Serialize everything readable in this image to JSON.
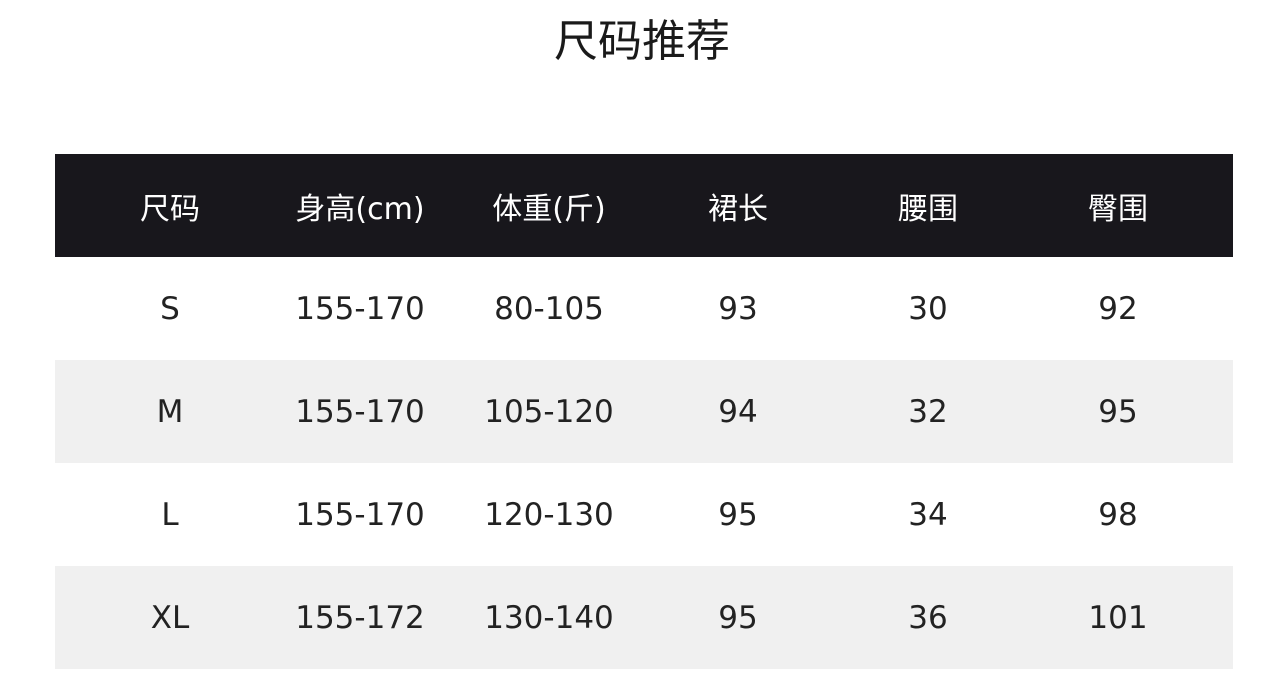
{
  "title": "尺码推荐",
  "colors": {
    "header_bg": "#18171c",
    "header_text": "#ffffff",
    "alt_row_bg": "#f0f0f0",
    "text": "#222222"
  },
  "table": {
    "headers": [
      "尺码",
      "身高(cm)",
      "体重(斤)",
      "裙长",
      "腰围",
      "臀围"
    ],
    "rows": [
      [
        "S",
        "155-170",
        "80-105",
        "93",
        "30",
        "92"
      ],
      [
        "M",
        "155-170",
        "105-120",
        "94",
        "32",
        "95"
      ],
      [
        "L",
        "155-170",
        "120-130",
        "95",
        "34",
        "98"
      ],
      [
        "XL",
        "155-172",
        "130-140",
        "95",
        "36",
        "101"
      ]
    ]
  }
}
